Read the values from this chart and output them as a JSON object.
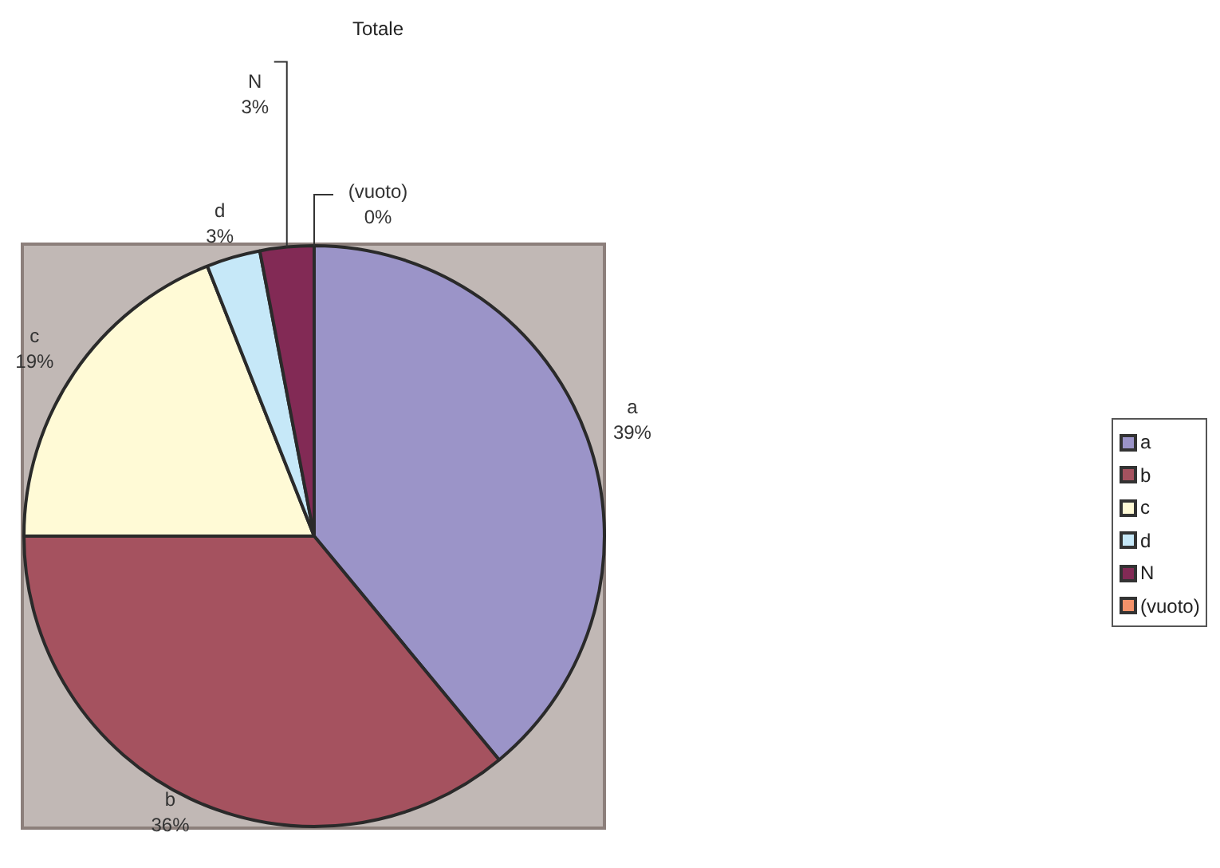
{
  "chart_data": {
    "type": "pie",
    "title": "Totale",
    "categories": [
      "a",
      "b",
      "c",
      "d",
      "N",
      "(vuoto)"
    ],
    "values": [
      39,
      36,
      19,
      3,
      3,
      0
    ],
    "colors": [
      "#9b94c8",
      "#a5525f",
      "#fffad6",
      "#c6e8f8",
      "#822a55",
      "#f4926a"
    ],
    "value_labels": [
      "39%",
      "36%",
      "19%",
      "3%",
      "3%",
      "0%"
    ],
    "legend": "right"
  }
}
